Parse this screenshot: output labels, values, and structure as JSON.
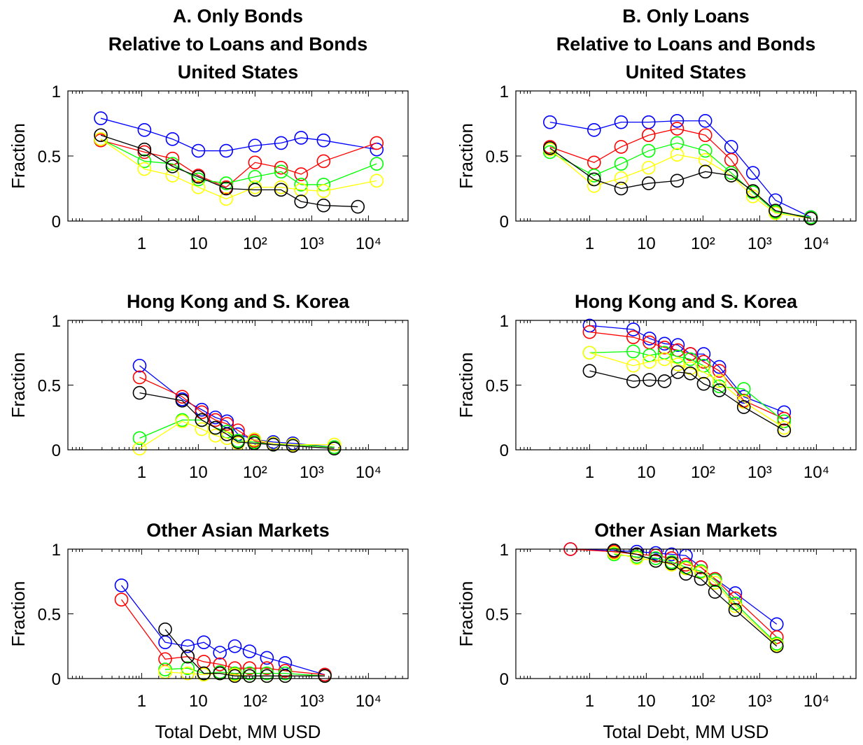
{
  "chart_data": [
    {
      "type": "line",
      "title": [
        "A. Only Bonds",
        "Relative to Loans and Bonds",
        "United States"
      ],
      "ylabel": "Fraction",
      "xscale": "log",
      "xlim": [
        0.05,
        50000
      ],
      "ylim": [
        0,
        1
      ],
      "yticks": [
        0,
        0.5,
        1
      ],
      "xticks": [
        1,
        10,
        {
          "value": 100,
          "label": "10²"
        },
        {
          "value": 1000,
          "label": "10³"
        },
        {
          "value": 10000,
          "label": "10⁴"
        }
      ],
      "x": [
        0.19,
        1.12,
        3.5,
        10,
        31,
        100,
        288,
        650,
        1620,
        14000
      ],
      "series": [
        {
          "color": "#0000ff",
          "values": [
            0.79,
            0.7,
            0.63,
            0.54,
            0.54,
            0.58,
            0.6,
            0.64,
            0.62,
            0.55
          ]
        },
        {
          "color": "#ff0000",
          "values": [
            0.62,
            0.53,
            0.48,
            0.35,
            0.26,
            0.45,
            0.41,
            0.36,
            0.46,
            0.6
          ]
        },
        {
          "color": "#00ff00",
          "values": [
            0.63,
            0.46,
            0.44,
            0.32,
            0.29,
            0.34,
            0.38,
            0.28,
            0.28,
            0.44
          ]
        },
        {
          "color": "#ffff00",
          "values": [
            0.63,
            0.4,
            0.35,
            0.26,
            0.17,
            0.26,
            0.26,
            0.24,
            0.23,
            0.31
          ]
        },
        {
          "color": "#000000",
          "x": [
            0.19,
            1.12,
            3.5,
            10,
            31,
            100,
            288,
            650,
            1620,
            6500
          ],
          "values": [
            0.66,
            0.55,
            0.42,
            0.34,
            0.25,
            0.24,
            0.24,
            0.15,
            0.12,
            0.11
          ]
        }
      ]
    },
    {
      "type": "line",
      "title": [
        "B. Only Loans",
        "Relative to Loans and Bonds",
        "United States"
      ],
      "ylabel": "Fraction",
      "xscale": "log",
      "xlim": [
        0.05,
        50000
      ],
      "ylim": [
        0,
        1
      ],
      "yticks": [
        0,
        0.5,
        1
      ],
      "xticks": [
        1,
        10,
        {
          "value": 100,
          "label": "10²"
        },
        {
          "value": 1000,
          "label": "10³"
        },
        {
          "value": 10000,
          "label": "10⁴"
        }
      ],
      "x": [
        0.2,
        1.2,
        3.6,
        11,
        35,
        110,
        315,
        760,
        1900,
        8000
      ],
      "series": [
        {
          "color": "#0000ff",
          "values": [
            0.76,
            0.7,
            0.76,
            0.76,
            0.77,
            0.77,
            0.57,
            0.37,
            0.16,
            0.03
          ]
        },
        {
          "color": "#ff0000",
          "values": [
            0.57,
            0.45,
            0.57,
            0.66,
            0.71,
            0.66,
            0.47,
            0.23,
            0.08,
            0.02
          ]
        },
        {
          "color": "#00ff00",
          "values": [
            0.53,
            0.35,
            0.44,
            0.54,
            0.6,
            0.54,
            0.37,
            0.22,
            0.07,
            0.03
          ]
        },
        {
          "color": "#ffff00",
          "values": [
            0.55,
            0.27,
            0.33,
            0.41,
            0.51,
            0.47,
            0.35,
            0.19,
            0.06,
            0.02
          ]
        },
        {
          "color": "#000000",
          "values": [
            0.56,
            0.32,
            0.25,
            0.29,
            0.31,
            0.38,
            0.35,
            0.23,
            0.08,
            0.02
          ]
        }
      ]
    },
    {
      "type": "line",
      "title": [
        "Hong Kong and S. Korea"
      ],
      "ylabel": "Fraction",
      "xscale": "log",
      "xlim": [
        0.05,
        50000
      ],
      "ylim": [
        0,
        1
      ],
      "yticks": [
        0,
        0.5,
        1
      ],
      "xticks": [
        1,
        10,
        {
          "value": 100,
          "label": "10²"
        },
        {
          "value": 1000,
          "label": "10³"
        },
        {
          "value": 10000,
          "label": "10⁴"
        }
      ],
      "x": [
        0.92,
        5.2,
        11.5,
        20,
        32,
        50,
        97,
        210,
        465,
        2500
      ],
      "series": [
        {
          "color": "#0000ff",
          "values": [
            0.65,
            0.39,
            0.31,
            0.25,
            0.22,
            0.12,
            0.08,
            0.06,
            0.05,
            0.02
          ]
        },
        {
          "color": "#ff0000",
          "values": [
            0.56,
            0.41,
            0.29,
            0.23,
            0.2,
            0.15,
            0.07,
            0.04,
            0.04,
            0.02
          ]
        },
        {
          "color": "#00ff00",
          "values": [
            0.09,
            0.23,
            0.23,
            0.17,
            0.14,
            0.07,
            0.06,
            0.04,
            0.04,
            0.02
          ]
        },
        {
          "color": "#ffff00",
          "values": [
            0.01,
            0.22,
            0.16,
            0.11,
            0.09,
            0.05,
            0.08,
            0.05,
            0.04,
            0.04
          ]
        },
        {
          "color": "#000000",
          "values": [
            0.44,
            0.38,
            0.23,
            0.17,
            0.12,
            0.06,
            0.05,
            0.04,
            0.03,
            0.01
          ]
        }
      ]
    },
    {
      "type": "line",
      "title": [
        "Hong Kong and S. Korea"
      ],
      "ylabel": "Fraction",
      "xscale": "log",
      "xlim": [
        0.05,
        50000
      ],
      "ylim": [
        0,
        1
      ],
      "yticks": [
        0,
        0.5,
        1
      ],
      "xticks": [
        1,
        10,
        {
          "value": 100,
          "label": "10²"
        },
        {
          "value": 1000,
          "label": "10³"
        },
        {
          "value": 10000,
          "label": "10⁴"
        }
      ],
      "x": [
        1,
        5.9,
        11.4,
        21,
        36,
        60,
        103,
        194,
        525,
        2700
      ],
      "series": [
        {
          "color": "#0000ff",
          "values": [
            0.96,
            0.93,
            0.86,
            0.82,
            0.81,
            0.74,
            0.74,
            0.64,
            0.41,
            0.29
          ]
        },
        {
          "color": "#ff0000",
          "values": [
            0.91,
            0.87,
            0.83,
            0.79,
            0.77,
            0.74,
            0.68,
            0.61,
            0.38,
            0.24
          ]
        },
        {
          "color": "#00ff00",
          "values": [
            0.75,
            0.76,
            0.73,
            0.75,
            0.72,
            0.7,
            0.65,
            0.49,
            0.47,
            0.22
          ]
        },
        {
          "color": "#ffff00",
          "values": [
            0.75,
            0.65,
            0.68,
            0.7,
            0.66,
            0.63,
            0.6,
            0.53,
            0.37,
            0.17
          ]
        },
        {
          "color": "#000000",
          "values": [
            0.61,
            0.53,
            0.54,
            0.53,
            0.6,
            0.59,
            0.51,
            0.46,
            0.33,
            0.15
          ]
        }
      ]
    },
    {
      "type": "line",
      "title": [
        "Other Asian Markets"
      ],
      "ylabel": "Fraction",
      "xlabel": "Total Debt, MM USD",
      "xscale": "log",
      "xlim": [
        0.05,
        50000
      ],
      "ylim": [
        0,
        1
      ],
      "yticks": [
        0,
        0.5,
        1
      ],
      "xticks": [
        1,
        10,
        {
          "value": 100,
          "label": "10²"
        },
        {
          "value": 1000,
          "label": "10³"
        },
        {
          "value": 10000,
          "label": "10⁴"
        }
      ],
      "x": [
        0.44,
        2.6,
        6.5,
        12.5,
        24,
        44,
        80,
        162,
        340,
        1700
      ],
      "series": [
        {
          "color": "#0000ff",
          "values": [
            0.72,
            0.28,
            0.25,
            0.28,
            0.2,
            0.25,
            0.21,
            0.16,
            0.12,
            0.03
          ]
        },
        {
          "color": "#ff0000",
          "values": [
            0.61,
            0.15,
            0.17,
            0.13,
            0.11,
            0.08,
            0.08,
            0.08,
            0.06,
            0.03
          ]
        },
        {
          "color": "#00ff00",
          "values": [
            null,
            0.07,
            0.08,
            0.04,
            0.05,
            0.04,
            0.04,
            0.04,
            0.04,
            0.02
          ]
        },
        {
          "color": "#ffff00",
          "values": [
            null,
            0.05,
            0.04,
            0.03,
            0.04,
            0.03,
            0.02,
            0.02,
            0.02,
            0.02
          ]
        },
        {
          "color": "#000000",
          "values": [
            null,
            0.38,
            0.17,
            0.04,
            0.04,
            0.02,
            0.02,
            0.02,
            0.02,
            0.02
          ]
        }
      ]
    },
    {
      "type": "line",
      "title": [
        "Other Asian Markets"
      ],
      "ylabel": "Fraction",
      "xlabel": "Total Debt, MM USD",
      "xscale": "log",
      "xlim": [
        0.05,
        50000
      ],
      "ylim": [
        0,
        1
      ],
      "yticks": [
        0,
        0.5,
        1
      ],
      "xticks": [
        1,
        10,
        {
          "value": 100,
          "label": "10²"
        },
        {
          "value": 1000,
          "label": "10³"
        },
        {
          "value": 10000,
          "label": "10⁴"
        }
      ],
      "x": [
        0.46,
        2.7,
        6.8,
        14.7,
        28,
        50,
        92,
        163,
        371,
        2000
      ],
      "series": [
        {
          "color": "#0000ff",
          "values": [
            1.0,
            0.99,
            0.98,
            0.97,
            0.96,
            0.95,
            0.86,
            0.77,
            0.66,
            0.42
          ]
        },
        {
          "color": "#ff0000",
          "values": [
            1.0,
            0.98,
            0.96,
            0.95,
            0.93,
            0.88,
            0.86,
            0.77,
            0.62,
            0.32
          ]
        },
        {
          "color": "#00ff00",
          "values": [
            null,
            0.96,
            0.94,
            0.93,
            0.9,
            0.86,
            0.83,
            0.76,
            0.58,
            0.27
          ]
        },
        {
          "color": "#ffff00",
          "values": [
            null,
            0.97,
            0.93,
            0.91,
            0.88,
            0.85,
            0.82,
            0.74,
            0.56,
            0.26
          ]
        },
        {
          "color": "#000000",
          "values": [
            null,
            0.99,
            0.96,
            0.91,
            0.89,
            0.81,
            0.77,
            0.67,
            0.53,
            0.25
          ]
        }
      ]
    }
  ]
}
